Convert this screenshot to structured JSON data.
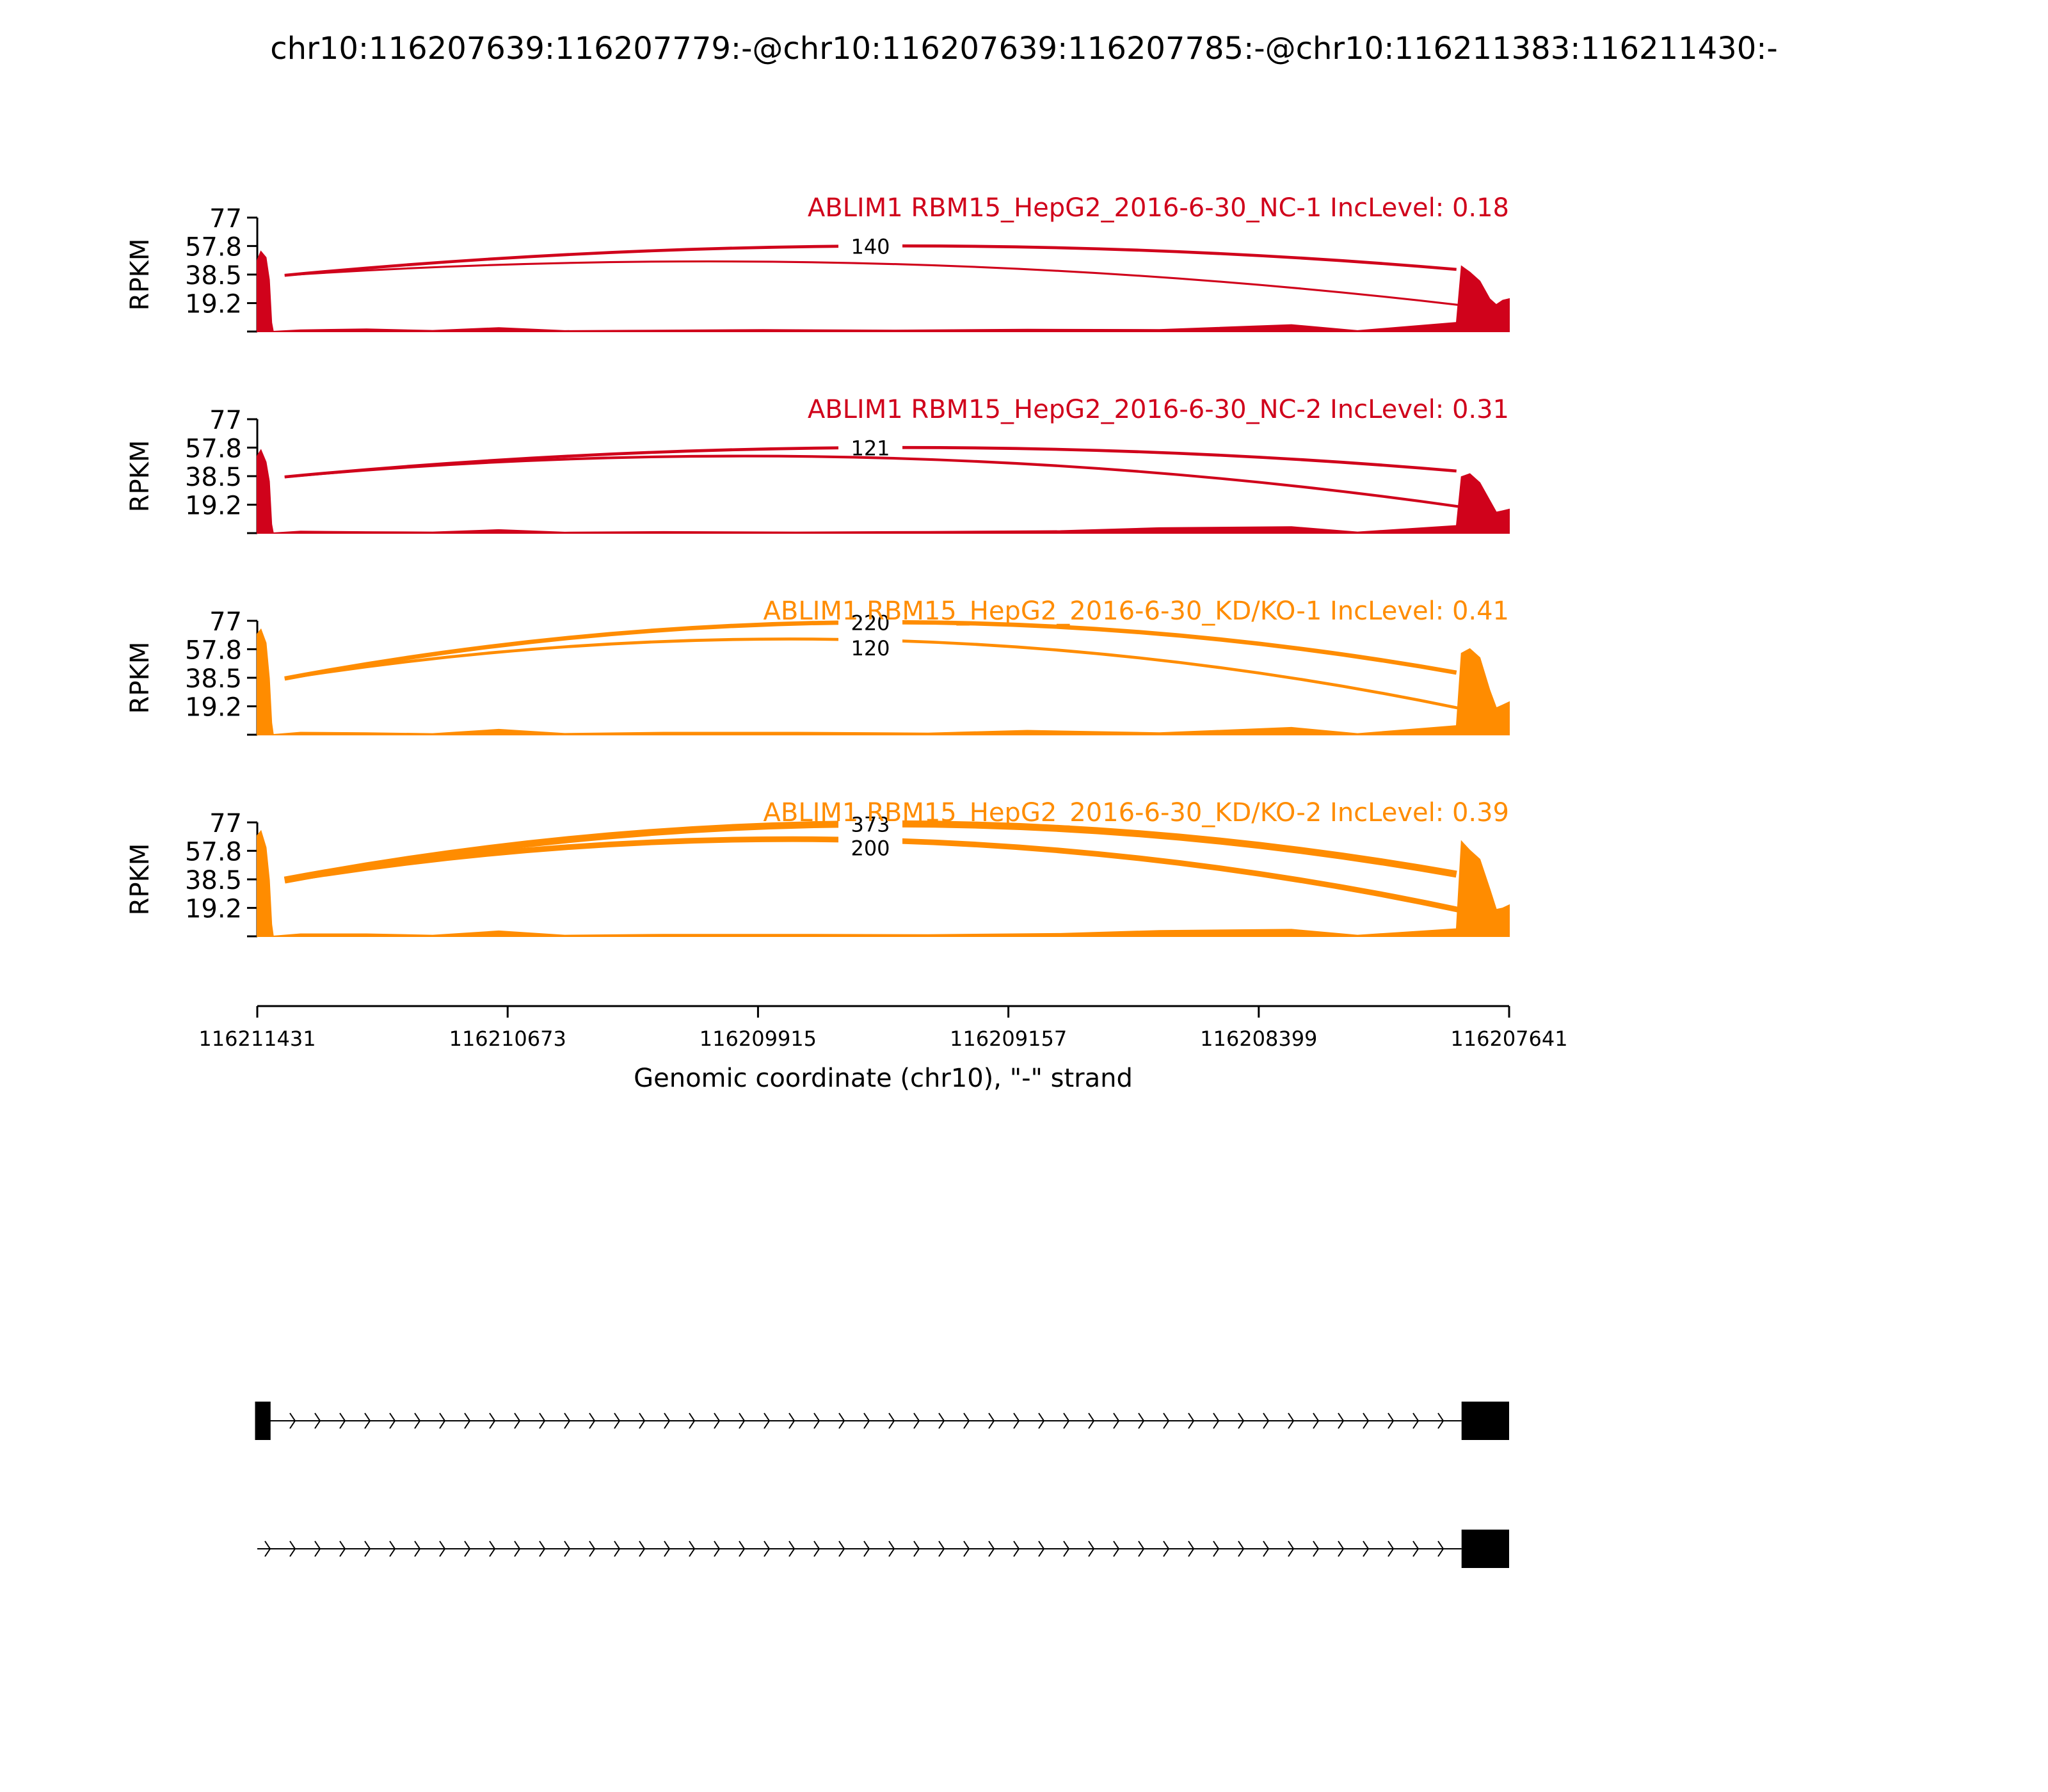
{
  "title": "chr10:116207639:116207779:-@chr10:116207639:116207785:-@chr10:116211383:116211430:-",
  "colors": {
    "nc": "#d0021b",
    "kd": "#ff8c00",
    "axis": "#000000"
  },
  "chart_data": {
    "type": "area",
    "title": "chr10:116207639:116207779:-@chr10:116207639:116207785:-@chr10:116211383:116211430:-",
    "xlabel": "Genomic coordinate (chr10), \"-\" strand",
    "xlim": [
      116211431,
      116207641
    ],
    "x_ticks": [
      "116211431",
      "116210673",
      "116209915",
      "116209157",
      "116208399",
      "116207641"
    ],
    "x_tick_values": [
      116211431,
      116210673,
      116209915,
      116209157,
      116208399,
      116207641
    ],
    "ylabel": "RPKM",
    "ylim": [
      0,
      77
    ],
    "y_ticks": [
      "77",
      "57.8",
      "38.5",
      "19.2"
    ],
    "y_tick_values": [
      77,
      57.8,
      38.5,
      19.2
    ],
    "exons": {
      "upstream": [
        116211430,
        116211383
      ],
      "downstream": [
        116207785,
        116207641
      ]
    },
    "series": [
      {
        "name": "ABLIM1 RBM15_HepG2_2016-6-30_NC-1 IncLevel: 0.18",
        "color": "#d0021b",
        "group": "nc",
        "coverage": [
          [
            116211431,
            48
          ],
          [
            116211420,
            54
          ],
          [
            116211405,
            50
          ],
          [
            116211395,
            35
          ],
          [
            116211388,
            6
          ],
          [
            116211383,
            0
          ],
          [
            116211300,
            1
          ],
          [
            116211100,
            1.6
          ],
          [
            116210900,
            0.6
          ],
          [
            116210700,
            2.5
          ],
          [
            116210500,
            0.5
          ],
          [
            116210300,
            0.7
          ],
          [
            116209900,
            1.2
          ],
          [
            116209500,
            0.8
          ],
          [
            116209100,
            1.4
          ],
          [
            116208700,
            1.2
          ],
          [
            116208300,
            4.5
          ],
          [
            116208100,
            0.5
          ],
          [
            116207800,
            6
          ],
          [
            116207785,
            44
          ],
          [
            116207760,
            40
          ],
          [
            116207730,
            34
          ],
          [
            116207700,
            22
          ],
          [
            116207680,
            18
          ],
          [
            116207660,
            21
          ],
          [
            116207641,
            22
          ]
        ],
        "junctions": [
          {
            "label": "140",
            "height": 57.8,
            "from": 116211383,
            "to": 116207785,
            "width": 1.8
          },
          {
            "label": "",
            "height": 46,
            "from": 116211383,
            "to": 116207779,
            "width": 1.2
          }
        ]
      },
      {
        "name": "ABLIM1 RBM15_HepG2_2016-6-30_NC-2 IncLevel: 0.31",
        "color": "#d0021b",
        "group": "nc",
        "coverage": [
          [
            116211431,
            52
          ],
          [
            116211420,
            56
          ],
          [
            116211405,
            48
          ],
          [
            116211395,
            35
          ],
          [
            116211388,
            6
          ],
          [
            116211383,
            0
          ],
          [
            116211300,
            1.2
          ],
          [
            116211100,
            0.8
          ],
          [
            116210900,
            0.6
          ],
          [
            116210700,
            2.2
          ],
          [
            116210500,
            0.5
          ],
          [
            116210200,
            0.9
          ],
          [
            116209800,
            0.6
          ],
          [
            116209400,
            1
          ],
          [
            116209000,
            1.5
          ],
          [
            116208700,
            3.5
          ],
          [
            116208300,
            4.2
          ],
          [
            116208100,
            0.6
          ],
          [
            116207800,
            5
          ],
          [
            116207785,
            38
          ],
          [
            116207760,
            40
          ],
          [
            116207730,
            34
          ],
          [
            116207700,
            22
          ],
          [
            116207680,
            14
          ],
          [
            116207660,
            15
          ],
          [
            116207641,
            16
          ]
        ],
        "junctions": [
          {
            "label": "121",
            "height": 57.8,
            "from": 116211383,
            "to": 116207785,
            "width": 1.8
          },
          {
            "label": "",
            "height": 51,
            "from": 116211383,
            "to": 116207779,
            "width": 1.6
          }
        ]
      },
      {
        "name": "ABLIM1 RBM15_HepG2_2016-6-30_KD/KO-1 IncLevel: 0.41",
        "color": "#ff8c00",
        "group": "kd",
        "coverage": [
          [
            116211431,
            68
          ],
          [
            116211420,
            71
          ],
          [
            116211405,
            62
          ],
          [
            116211395,
            38
          ],
          [
            116211388,
            8
          ],
          [
            116211383,
            0
          ],
          [
            116211300,
            1.5
          ],
          [
            116211100,
            1.2
          ],
          [
            116210900,
            0.6
          ],
          [
            116210700,
            3.5
          ],
          [
            116210500,
            0.7
          ],
          [
            116210200,
            1.5
          ],
          [
            116209800,
            1.5
          ],
          [
            116209400,
            1
          ],
          [
            116209100,
            2.8
          ],
          [
            116208700,
            1.2
          ],
          [
            116208300,
            4.8
          ],
          [
            116208100,
            0.6
          ],
          [
            116207800,
            6
          ],
          [
            116207785,
            55
          ],
          [
            116207760,
            58
          ],
          [
            116207730,
            52
          ],
          [
            116207700,
            30
          ],
          [
            116207680,
            18
          ],
          [
            116207660,
            20
          ],
          [
            116207641,
            22
          ]
        ],
        "junctions": [
          {
            "label": "220",
            "height": 76,
            "from": 116211383,
            "to": 116207785,
            "width": 2.6
          },
          {
            "label": "120",
            "height": 64,
            "from": 116211383,
            "to": 116207779,
            "width": 1.8
          }
        ]
      },
      {
        "name": "ABLIM1 RBM15_HepG2_2016-6-30_KD/KO-2 IncLevel: 0.39",
        "color": "#ff8c00",
        "group": "kd",
        "coverage": [
          [
            116211431,
            68
          ],
          [
            116211420,
            71
          ],
          [
            116211405,
            60
          ],
          [
            116211395,
            38
          ],
          [
            116211388,
            8
          ],
          [
            116211383,
            0
          ],
          [
            116211300,
            1.5
          ],
          [
            116211100,
            1.5
          ],
          [
            116210900,
            0.6
          ],
          [
            116210700,
            3.5
          ],
          [
            116210500,
            0.6
          ],
          [
            116210200,
            1.2
          ],
          [
            116209800,
            1.2
          ],
          [
            116209400,
            1
          ],
          [
            116209000,
            1.8
          ],
          [
            116208700,
            3.8
          ],
          [
            116208300,
            4.6
          ],
          [
            116208100,
            0.6
          ],
          [
            116207800,
            5
          ],
          [
            116207785,
            64
          ],
          [
            116207760,
            58
          ],
          [
            116207730,
            52
          ],
          [
            116207700,
            32
          ],
          [
            116207680,
            18
          ],
          [
            116207660,
            19
          ],
          [
            116207641,
            21
          ]
        ],
        "junctions": [
          {
            "label": "373",
            "height": 76,
            "from": 116211383,
            "to": 116207785,
            "width": 4.2
          },
          {
            "label": "200",
            "height": 65,
            "from": 116211383,
            "to": 116207779,
            "width": 3.4
          }
        ]
      }
    ]
  },
  "isoforms": [
    {
      "exons": [
        [
          116211430,
          116211383
        ],
        [
          116207785,
          116207641
        ]
      ],
      "strand": "-"
    },
    {
      "exons": [
        [
          116207785,
          116207641
        ]
      ],
      "strand": "-"
    }
  ]
}
